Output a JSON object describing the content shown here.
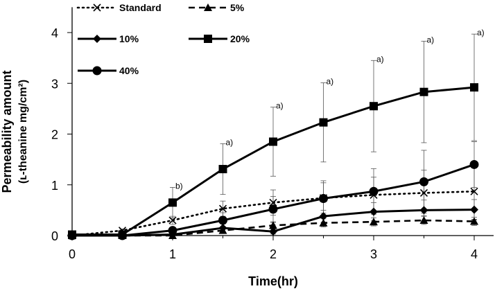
{
  "chart_data": {
    "type": "line",
    "title": "",
    "xlabel": "Time(hr)",
    "ylabel_line1": "Permeability amount",
    "ylabel_line2": "(ʟ-theanine mg/cm²)",
    "xlim": [
      0,
      4
    ],
    "ylim": [
      0,
      4.5
    ],
    "x_ticks": [
      0,
      1,
      2,
      3,
      4
    ],
    "y_ticks": [
      0,
      1,
      2,
      3,
      4
    ],
    "x": [
      0,
      0.5,
      1,
      1.5,
      2,
      2.5,
      3,
      3.5,
      4
    ],
    "series": [
      {
        "name": "Standard",
        "style": "dotted",
        "marker": "x",
        "color": "#000000",
        "values": [
          0.0,
          0.1,
          0.3,
          0.53,
          0.65,
          0.74,
          0.8,
          0.84,
          0.87
        ],
        "errors": [
          0.0,
          0.03,
          0.08,
          0.15,
          0.25,
          0.3,
          0.35,
          0.45,
          0.55
        ]
      },
      {
        "name": "5%",
        "style": "dashed",
        "marker": "triangle",
        "color": "#000000",
        "values": [
          0.0,
          0.0,
          0.0,
          0.1,
          0.2,
          0.25,
          0.27,
          0.3,
          0.28
        ],
        "errors": [
          0.0,
          0.0,
          0.0,
          0.04,
          0.06,
          0.08,
          0.08,
          0.08,
          0.08
        ]
      },
      {
        "name": "10%",
        "style": "solid",
        "marker": "diamond",
        "color": "#000000",
        "values": [
          0.0,
          0.0,
          0.02,
          0.15,
          0.08,
          0.38,
          0.47,
          0.5,
          0.51
        ],
        "errors": [
          0.0,
          0.0,
          0.02,
          0.08,
          0.05,
          0.12,
          0.18,
          0.2,
          0.2
        ]
      },
      {
        "name": "20%",
        "style": "solid",
        "marker": "square",
        "color": "#000000",
        "values": [
          0.02,
          0.02,
          0.65,
          1.31,
          1.85,
          2.23,
          2.55,
          2.83,
          2.92
        ],
        "errors": [
          0.0,
          0.05,
          0.3,
          0.5,
          0.68,
          0.78,
          0.9,
          1.0,
          1.05
        ]
      },
      {
        "name": "40%",
        "style": "solid",
        "marker": "circle",
        "color": "#000000",
        "values": [
          0.0,
          0.0,
          0.1,
          0.3,
          0.52,
          0.73,
          0.87,
          1.06,
          1.4
        ],
        "errors": [
          0.0,
          0.0,
          0.05,
          0.15,
          0.25,
          0.35,
          0.45,
          0.62,
          0.45
        ]
      }
    ],
    "annotations": [
      {
        "x": 1,
        "y": 0.95,
        "text": "b)"
      },
      {
        "x": 1.5,
        "y": 1.81,
        "text": "a)"
      },
      {
        "x": 2,
        "y": 2.53,
        "text": "a)"
      },
      {
        "x": 2.5,
        "y": 3.01,
        "text": "a)"
      },
      {
        "x": 3,
        "y": 3.45,
        "text": "a)"
      },
      {
        "x": 3.5,
        "y": 3.83,
        "text": "a)"
      },
      {
        "x": 4,
        "y": 3.97,
        "text": "a)"
      }
    ],
    "legend": {
      "position": "top-left",
      "columns": 2
    }
  }
}
